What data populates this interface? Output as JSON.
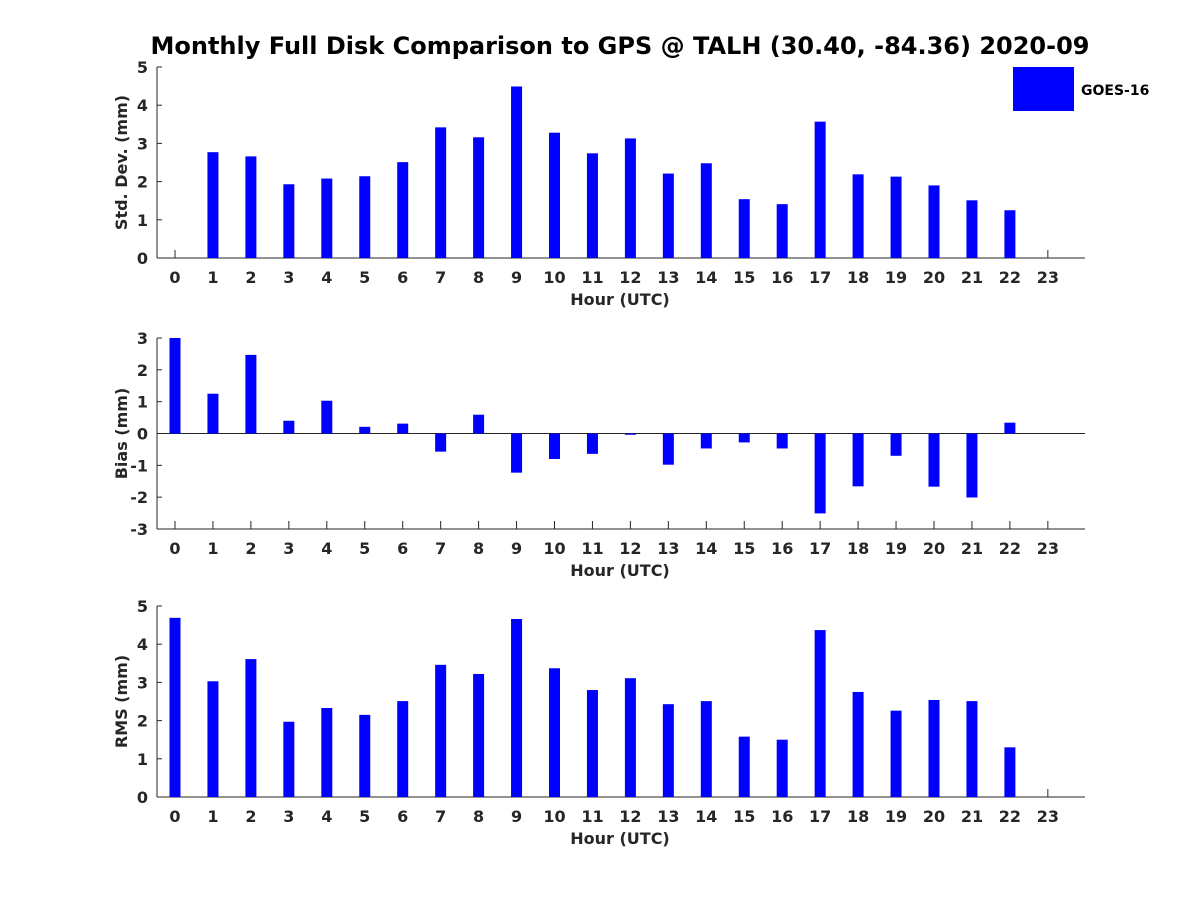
{
  "title": "Monthly Full Disk Comparison to GPS @ TALH (30.40, -84.36) 2020-09",
  "legend": {
    "label": "GOES-16",
    "color": "#0000ff"
  },
  "bar_color": "#0000ff",
  "chart_data": [
    {
      "type": "bar",
      "xlabel": "Hour (UTC)",
      "ylabel": "Std. Dev. (mm)",
      "ylim": [
        0,
        5
      ],
      "yticks": [
        "0",
        "1",
        "2",
        "3",
        "4",
        "5"
      ],
      "categories": [
        "0",
        "1",
        "2",
        "3",
        "4",
        "5",
        "6",
        "7",
        "8",
        "9",
        "10",
        "11",
        "12",
        "13",
        "14",
        "15",
        "16",
        "17",
        "18",
        "19",
        "20",
        "21",
        "22",
        "23"
      ],
      "series": [
        {
          "name": "GOES-16",
          "values": [
            null,
            2.77,
            2.66,
            1.93,
            2.08,
            2.14,
            2.51,
            3.42,
            3.16,
            4.49,
            3.28,
            2.74,
            3.13,
            2.21,
            2.48,
            1.54,
            1.41,
            3.57,
            2.19,
            2.13,
            1.9,
            1.51,
            1.25,
            null
          ]
        }
      ]
    },
    {
      "type": "bar",
      "xlabel": "Hour (UTC)",
      "ylabel": "Bias (mm)",
      "ylim": [
        -3,
        3
      ],
      "yticks": [
        "-3",
        "-2",
        "-1",
        "0",
        "1",
        "2",
        "3"
      ],
      "categories": [
        "0",
        "1",
        "2",
        "3",
        "4",
        "5",
        "6",
        "7",
        "8",
        "9",
        "10",
        "11",
        "12",
        "13",
        "14",
        "15",
        "16",
        "17",
        "18",
        "19",
        "20",
        "21",
        "22",
        "23"
      ],
      "series": [
        {
          "name": "GOES-16",
          "values": [
            3.0,
            1.25,
            2.47,
            0.4,
            1.03,
            0.21,
            0.31,
            -0.57,
            0.59,
            -1.23,
            -0.8,
            -0.64,
            -0.04,
            -0.98,
            -0.47,
            -0.28,
            -0.47,
            -2.51,
            -1.66,
            -0.7,
            -1.67,
            -2.01,
            0.34,
            null
          ]
        }
      ]
    },
    {
      "type": "bar",
      "xlabel": "Hour (UTC)",
      "ylabel": "RMS (mm)",
      "ylim": [
        0,
        5
      ],
      "yticks": [
        "0",
        "1",
        "2",
        "3",
        "4",
        "5"
      ],
      "categories": [
        "0",
        "1",
        "2",
        "3",
        "4",
        "5",
        "6",
        "7",
        "8",
        "9",
        "10",
        "11",
        "12",
        "13",
        "14",
        "15",
        "16",
        "17",
        "18",
        "19",
        "20",
        "21",
        "22",
        "23"
      ],
      "series": [
        {
          "name": "GOES-16",
          "values": [
            4.69,
            3.03,
            3.61,
            1.97,
            2.33,
            2.15,
            2.51,
            3.46,
            3.22,
            4.66,
            3.37,
            2.8,
            3.11,
            2.43,
            2.51,
            1.58,
            1.5,
            4.37,
            2.75,
            2.26,
            2.54,
            2.51,
            1.3,
            null
          ]
        }
      ]
    }
  ]
}
